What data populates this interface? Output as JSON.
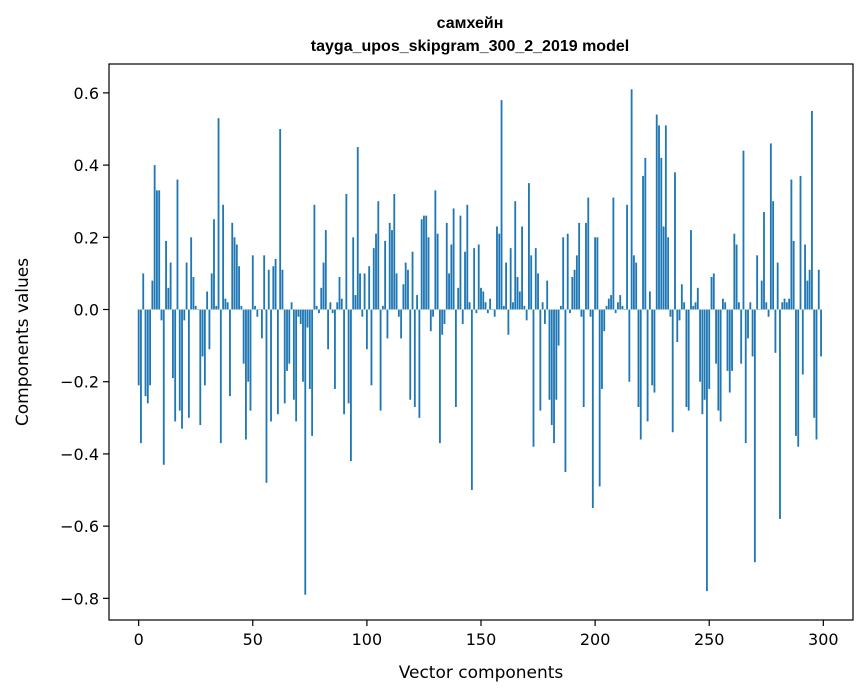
{
  "chart_data": {
    "type": "bar",
    "title_line1": "самхейн",
    "title_line2": "tayga_upos_skipgram_300_2_2019 model",
    "xlabel": "Vector components",
    "ylabel": "Components values",
    "xlim": [
      -13,
      313
    ],
    "ylim": [
      -0.86,
      0.68
    ],
    "xticks": [
      0,
      50,
      100,
      150,
      200,
      250,
      300
    ],
    "xtick_labels": [
      "0",
      "50",
      "100",
      "150",
      "200",
      "250",
      "300"
    ],
    "yticks": [
      -0.8,
      -0.6,
      -0.4,
      -0.2,
      0.0,
      0.2,
      0.4,
      0.6
    ],
    "ytick_labels": [
      "−0.8",
      "−0.6",
      "−0.4",
      "−0.2",
      "0.0",
      "0.2",
      "0.4",
      "0.6"
    ],
    "bar_color": "#1f77b4",
    "grid": false,
    "values": [
      -0.21,
      -0.37,
      0.1,
      -0.24,
      -0.26,
      -0.21,
      0.08,
      0.4,
      0.33,
      0.33,
      -0.03,
      -0.43,
      0.19,
      0.06,
      0.13,
      -0.19,
      -0.31,
      0.36,
      -0.28,
      -0.33,
      -0.03,
      0.13,
      -0.3,
      0.2,
      0.09,
      0.01,
      0.0,
      -0.32,
      -0.13,
      -0.21,
      0.05,
      -0.11,
      0.1,
      0.25,
      0.01,
      0.53,
      -0.37,
      0.29,
      0.03,
      0.02,
      -0.24,
      0.24,
      0.2,
      0.18,
      0.12,
      0.01,
      -0.15,
      -0.36,
      -0.2,
      -0.28,
      0.15,
      0.01,
      -0.02,
      0.0,
      -0.08,
      0.15,
      -0.48,
      0.11,
      -0.31,
      0.12,
      0.14,
      -0.29,
      0.5,
      0.11,
      -0.26,
      -0.17,
      -0.15,
      0.02,
      -0.25,
      -0.31,
      -0.02,
      -0.04,
      -0.2,
      -0.79,
      -0.05,
      -0.22,
      -0.35,
      0.29,
      0.01,
      -0.01,
      0.06,
      0.13,
      0.22,
      -0.11,
      0.02,
      -0.01,
      -0.22,
      0.02,
      0.09,
      0.03,
      -0.29,
      0.32,
      -0.26,
      -0.42,
      0.2,
      0.04,
      0.45,
      0.1,
      -0.02,
      0.1,
      -0.11,
      0.12,
      -0.21,
      0.17,
      0.21,
      0.3,
      -0.28,
      0.01,
      0.19,
      -0.08,
      0.24,
      0.22,
      0.32,
      0.1,
      -0.02,
      -0.08,
      0.07,
      0.13,
      0.11,
      -0.25,
      0.16,
      -0.27,
      0.04,
      -0.3,
      0.25,
      0.26,
      0.26,
      0.2,
      -0.06,
      -0.02,
      0.33,
      0.21,
      -0.37,
      -0.07,
      -0.04,
      0.24,
      0.1,
      0.18,
      0.28,
      -0.27,
      0.06,
      0.26,
      -0.04,
      0.16,
      0.29,
      0.02,
      -0.5,
      0.17,
      -0.01,
      0.18,
      0.06,
      0.05,
      0.02,
      -0.01,
      0.03,
      0.0,
      -0.02,
      0.23,
      0.21,
      0.58,
      0.01,
      0.13,
      -0.07,
      0.17,
      0.02,
      0.3,
      0.09,
      0.05,
      0.23,
      0.01,
      -0.03,
      0.35,
      0.15,
      -0.38,
      0.17,
      0.1,
      -0.28,
      0.02,
      -0.04,
      0.08,
      -0.25,
      -0.32,
      -0.37,
      -0.25,
      -0.1,
      0.01,
      0.2,
      -0.45,
      0.21,
      -0.01,
      0.09,
      0.11,
      0.15,
      0.24,
      -0.02,
      -0.27,
      0.24,
      0.31,
      -0.02,
      -0.55,
      0.2,
      0.2,
      -0.49,
      -0.22,
      -0.06,
      0.01,
      0.03,
      0.04,
      0.31,
      -0.01,
      0.02,
      0.04,
      0.01,
      0.0,
      0.29,
      -0.2,
      0.61,
      0.15,
      0.13,
      -0.27,
      -0.36,
      0.37,
      0.42,
      -0.31,
      0.05,
      -0.21,
      -0.23,
      0.54,
      0.51,
      0.42,
      0.23,
      0.51,
      0.2,
      -0.02,
      -0.34,
      0.38,
      -0.09,
      -0.03,
      0.07,
      0.02,
      -0.27,
      -0.28,
      0.22,
      0.01,
      0.02,
      0.06,
      -0.2,
      -0.29,
      -0.25,
      -0.78,
      -0.22,
      0.09,
      0.1,
      -0.15,
      -0.28,
      -0.31,
      0.03,
      0.02,
      -0.17,
      -0.23,
      -0.17,
      0.21,
      0.18,
      0.02,
      -0.15,
      0.44,
      -0.37,
      -0.08,
      0.02,
      -0.13,
      -0.7,
      0.15,
      0.0,
      0.08,
      0.27,
      0.02,
      -0.02,
      0.46,
      0.3,
      -0.12,
      0.13,
      -0.58,
      0.02,
      0.03,
      0.02,
      0.03,
      0.36,
      0.19,
      -0.35,
      -0.38,
      0.37,
      -0.18,
      0.18,
      0.08,
      0.11,
      0.55,
      -0.3,
      -0.36,
      0.11,
      -0.13
    ]
  }
}
